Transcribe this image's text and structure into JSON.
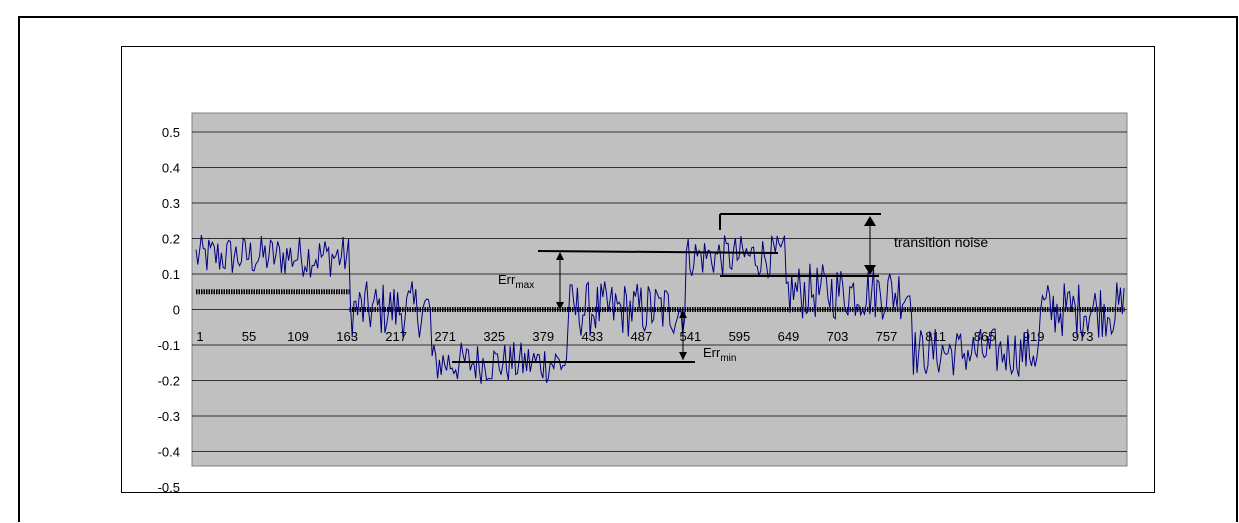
{
  "chart_data": {
    "type": "line",
    "title": "",
    "xlabel": "",
    "ylabel": "",
    "ylim": [
      -0.5,
      0.5
    ],
    "y_ticks": [
      "0.5",
      "0.4",
      "0.3",
      "0.2",
      "0.1",
      "0",
      "-0.1",
      "-0.2",
      "-0.3",
      "-0.4",
      "-0.5"
    ],
    "x_ticks": [
      "1",
      "55",
      "109",
      "163",
      "217",
      "271",
      "325",
      "379",
      "433",
      "487",
      "541",
      "595",
      "649",
      "703",
      "757",
      "811",
      "865",
      "919",
      "973"
    ],
    "x_range": [
      1,
      1024
    ],
    "grid": true,
    "plot_background": "#c0c0c0",
    "line_color": "#000080",
    "series": [
      {
        "name": "",
        "style": "noisy-line",
        "segments": [
          {
            "x_start": 1,
            "x_end": 170,
            "level": 0.15,
            "spread": 0.06
          },
          {
            "x_start": 170,
            "x_end": 260,
            "level": 0.0,
            "spread": 0.08
          },
          {
            "x_start": 260,
            "x_end": 410,
            "level": -0.15,
            "spread": 0.06
          },
          {
            "x_start": 410,
            "x_end": 540,
            "level": 0.0,
            "spread": 0.08
          },
          {
            "x_start": 540,
            "x_end": 650,
            "level": 0.15,
            "spread": 0.06
          },
          {
            "x_start": 650,
            "x_end": 790,
            "level": 0.05,
            "spread": 0.08
          },
          {
            "x_start": 790,
            "x_end": 930,
            "level": -0.12,
            "spread": 0.07
          },
          {
            "x_start": 930,
            "x_end": 1024,
            "level": 0.0,
            "spread": 0.08
          }
        ]
      },
      {
        "name": "",
        "style": "dashed-step",
        "color": "#000000",
        "points": [
          {
            "x_start": 1,
            "x_end": 170,
            "y": 0.05
          },
          {
            "x_start": 170,
            "x_end": 1024,
            "y": 0.0
          }
        ]
      }
    ],
    "annotations": {
      "err_max_label": "Err",
      "err_max_sub": "max",
      "err_min_label": "Err",
      "err_min_sub": "min",
      "transition_noise_label": "transition noise"
    }
  }
}
